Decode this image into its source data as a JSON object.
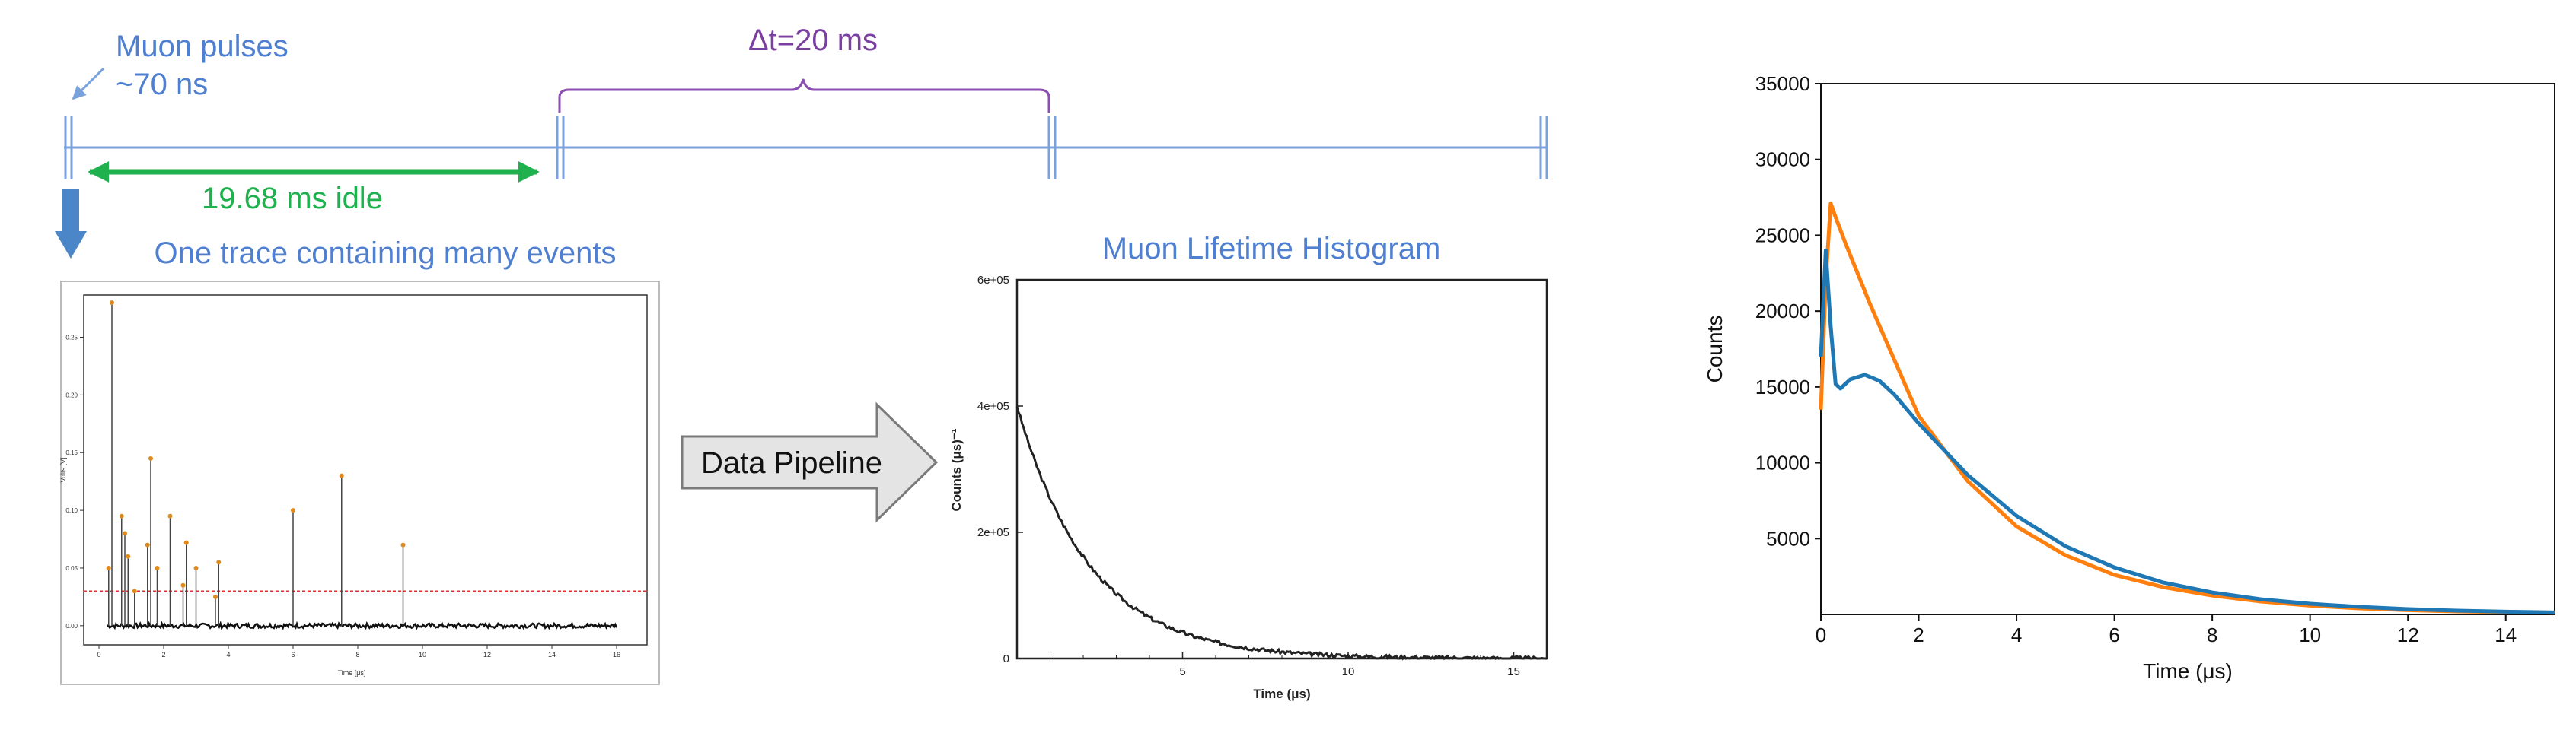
{
  "timeline": {
    "muon_pulses_label": "Muon pulses",
    "pulse_width_label": "~70 ns",
    "delta_t_label": "Δt=20 ms",
    "idle_label": "19.68 ms idle",
    "trace_title": "One trace containing many events"
  },
  "pipeline": {
    "label": "Data Pipeline"
  },
  "colors": {
    "blue_text": "#4f7fd0",
    "line": "#7aa2dc",
    "green": "#1fb14d",
    "purple": "#7a3fa0",
    "orange": "#ff7f0e",
    "mpl_blue": "#1f77b4"
  },
  "chart_data": [
    {
      "type": "line",
      "title": "",
      "xlabel": "Time [μs]",
      "ylabel": "Volts [V]",
      "xlim": [
        0,
        16
      ],
      "ylim": [
        -0.01,
        0.28
      ],
      "xticks": [
        "0",
        "2",
        "4",
        "6",
        "8",
        "10",
        "12",
        "14",
        "16"
      ],
      "yticks": [
        "0.00",
        "0.05",
        "0.10",
        "0.15",
        "0.20",
        "0.25"
      ],
      "threshold": 0.03,
      "peaks": [
        {
          "x": 0.4,
          "y": 0.28
        },
        {
          "x": 0.3,
          "y": 0.05
        },
        {
          "x": 0.7,
          "y": 0.095
        },
        {
          "x": 0.8,
          "y": 0.08
        },
        {
          "x": 0.9,
          "y": 0.06
        },
        {
          "x": 1.1,
          "y": 0.03
        },
        {
          "x": 1.5,
          "y": 0.07
        },
        {
          "x": 1.6,
          "y": 0.145
        },
        {
          "x": 1.8,
          "y": 0.05
        },
        {
          "x": 2.2,
          "y": 0.095
        },
        {
          "x": 2.6,
          "y": 0.035
        },
        {
          "x": 2.7,
          "y": 0.072
        },
        {
          "x": 3.0,
          "y": 0.05
        },
        {
          "x": 3.7,
          "y": 0.055
        },
        {
          "x": 3.6,
          "y": 0.025
        },
        {
          "x": 6.0,
          "y": 0.1
        },
        {
          "x": 7.5,
          "y": 0.13
        },
        {
          "x": 9.4,
          "y": 0.07
        }
      ]
    },
    {
      "type": "line",
      "title": "Muon Lifetime Histogram",
      "xlabel": "Time (μs)",
      "ylabel": "Counts (μs)⁻¹",
      "xlim": [
        0,
        16
      ],
      "ylim": [
        0,
        600000
      ],
      "xticks": [
        "5",
        "10",
        "15"
      ],
      "yticks": [
        "0",
        "2e+05",
        "4e+05",
        "6e+05"
      ],
      "series": [
        {
          "amplitude": 400000,
          "tau": 2.2
        }
      ]
    },
    {
      "type": "line",
      "title": "",
      "xlabel": "Time (μs)",
      "ylabel": "Counts",
      "xlim": [
        0,
        15
      ],
      "ylim": [
        0,
        35000
      ],
      "xticks": [
        "0",
        "2",
        "4",
        "6",
        "8",
        "10",
        "12",
        "14"
      ],
      "yticks": [
        "5000",
        "10000",
        "15000",
        "20000",
        "25000",
        "30000",
        "35000"
      ],
      "series": [
        {
          "color": "#ff7f0e",
          "x": [
            0.0,
            0.1,
            0.2,
            0.3,
            0.5,
            1.0,
            2.0,
            3.0,
            4.0,
            5.0,
            6.0,
            7.0,
            8.0,
            9.0,
            10.0,
            11.0,
            12.0,
            13.0,
            14.0,
            15.0
          ],
          "y": [
            13500,
            22000,
            27100,
            26200,
            24500,
            20500,
            13100,
            8800,
            5800,
            3900,
            2600,
            1800,
            1250,
            850,
            580,
            400,
            280,
            200,
            150,
            120
          ]
        },
        {
          "color": "#1f77b4",
          "x": [
            0.0,
            0.1,
            0.2,
            0.3,
            0.4,
            0.6,
            0.9,
            1.2,
            1.5,
            2.0,
            3.0,
            4.0,
            5.0,
            6.0,
            7.0,
            8.0,
            9.0,
            10.0,
            11.0,
            12.0,
            13.0,
            14.0,
            15.0
          ],
          "y": [
            17000,
            24000,
            19000,
            15200,
            14900,
            15500,
            15800,
            15400,
            14500,
            12600,
            9200,
            6500,
            4500,
            3100,
            2100,
            1450,
            1000,
            700,
            500,
            350,
            250,
            180,
            130
          ]
        }
      ]
    }
  ]
}
